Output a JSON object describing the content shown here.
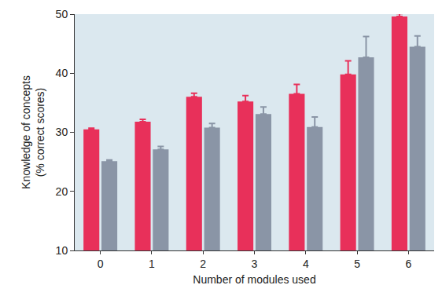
{
  "chart_data": {
    "type": "bar",
    "xlabel": "Number of modules used",
    "ylabel": "Knowledge of concepts\n(% correct scores)",
    "categories": [
      "0",
      "1",
      "2",
      "3",
      "4",
      "5",
      "6"
    ],
    "series": [
      {
        "color": "#e8305a",
        "values": [
          30.5,
          31.8,
          36.0,
          35.2,
          36.5,
          39.8,
          49.6
        ],
        "errors": [
          0.2,
          0.4,
          0.6,
          1.0,
          1.6,
          2.3,
          0.5
        ]
      },
      {
        "color": "#8a95a6",
        "values": [
          25.1,
          27.1,
          30.8,
          33.1,
          30.9,
          42.7,
          44.5
        ],
        "errors": [
          0.2,
          0.5,
          0.7,
          1.2,
          1.7,
          3.5,
          1.8
        ]
      }
    ],
    "ylim": [
      10,
      50
    ],
    "yticks": [
      10,
      20,
      30,
      40,
      50
    ],
    "grid": false
  }
}
